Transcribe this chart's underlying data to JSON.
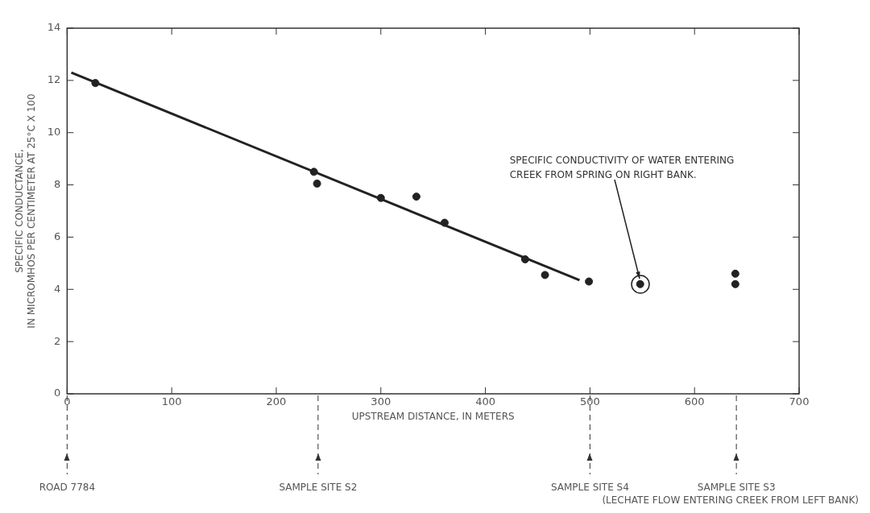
{
  "chart_data": {
    "type": "scatter",
    "xlabel": "UPSTREAM DISTANCE, IN METERS",
    "ylabel": "SPECIFIC CONDUCTANCE,\nIN MICROMHOS PER CENTIMETER AT 25°C X 100",
    "xlim": [
      0,
      700
    ],
    "xticks": [
      0,
      100,
      200,
      300,
      400,
      500,
      600,
      700
    ],
    "ylim": [
      0,
      14
    ],
    "yticks": [
      0,
      2,
      4,
      6,
      8,
      10,
      12,
      14
    ],
    "legend": false,
    "series": [
      {
        "marker": "circle",
        "color": "#222222",
        "x": [
          27,
          236,
          239,
          300,
          334,
          361,
          438,
          457,
          499,
          548,
          639,
          639
        ],
        "values": [
          11.9,
          8.5,
          8.05,
          7.5,
          7.55,
          6.55,
          5.15,
          4.55,
          4.3,
          4.2,
          4.6,
          4.2
        ]
      },
      {
        "type": "line",
        "color": "#222222",
        "x": [
          4,
          490
        ],
        "values": [
          12.3,
          4.35
        ]
      }
    ],
    "ref_lines": [
      {
        "axis": "x",
        "value": 0,
        "label": "ROAD 7784",
        "line_style": "dashed"
      },
      {
        "axis": "x",
        "value": 240,
        "label": "SAMPLE SITE S2",
        "line_style": "dashed"
      },
      {
        "axis": "x",
        "value": 500,
        "label": "SAMPLE SITE S4",
        "line_style": "dashed"
      },
      {
        "axis": "x",
        "value": 640,
        "label": "SAMPLE SITE S3",
        "line_style": "dashed"
      }
    ],
    "annotations": [
      {
        "text": "SPECIFIC CONDUCTIVITY OF WATER ENTERING CREEK FROM SPRING ON RIGHT BANK.",
        "x": 548,
        "y": 4.2
      },
      "(LECHATE FLOW ENTERING CREEK FROM LEFT BANK)"
    ]
  }
}
